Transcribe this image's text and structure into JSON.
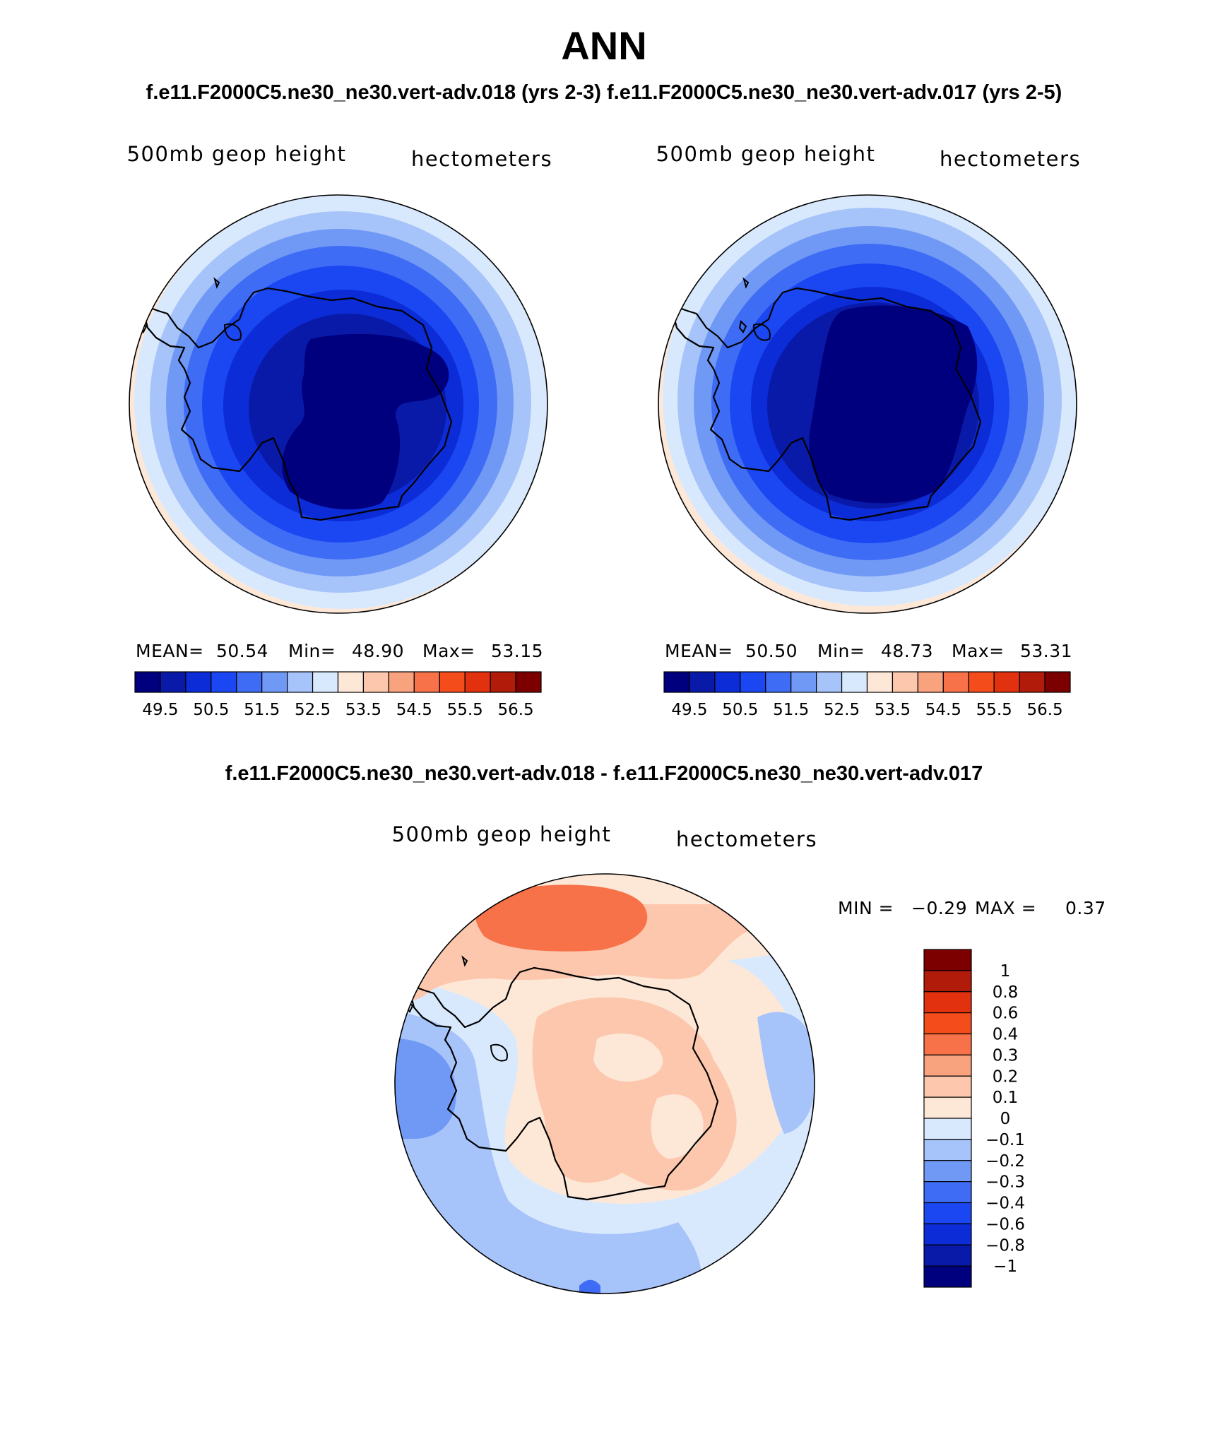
{
  "title": "ANN",
  "subtitle": "f.e11.F2000C5.ne30_ne30.vert-adv.018 (yrs 2-3)  f.e11.F2000C5.ne30_ne30.vert-adv.017 (yrs 2-5)",
  "diff_title": "f.e11.F2000C5.ne30_ne30.vert-adv.018 - f.e11.F2000C5.ne30_ne30.vert-adv.017",
  "panels": [
    {
      "variable": "500mb  geop  height",
      "units": "hectometers",
      "mean_label": "MEAN=",
      "mean": "50.54",
      "min_label": "Min=",
      "min": "48.90",
      "max_label": "Max=",
      "max": "53.15"
    },
    {
      "variable": "500mb  geop  height",
      "units": "hectometers",
      "mean_label": "MEAN=",
      "mean": "50.50",
      "min_label": "Min=",
      "min": "48.73",
      "max_label": "Max=",
      "max": "53.31"
    }
  ],
  "diff_panel": {
    "variable": "500mb  geop  height",
    "units": "hectometers",
    "min_label": "MIN =",
    "min": "−0.29",
    "max_label": "MAX =",
    "max": "0.37"
  },
  "chart_data": [
    {
      "type": "heatmap",
      "title": "500mb geop height (case 018, yrs 2-3)",
      "units": "hectometers",
      "projection": "south polar stereographic",
      "colorbar_orientation": "horizontal",
      "colorbar_levels": [
        "49.5",
        "50.5",
        "51.5",
        "52.5",
        "53.5",
        "54.5",
        "55.5",
        "56.5"
      ],
      "colorbar_colors": [
        "#00007f",
        "#0a1aa8",
        "#0b2cd6",
        "#1a47f2",
        "#3f6cf5",
        "#7099f6",
        "#a6c3fa",
        "#d9e9fd",
        "#fde8d8",
        "#fcc7ad",
        "#f9a27e",
        "#f77249",
        "#f44c1b",
        "#e1310e",
        "#b11b0a",
        "#7d0000"
      ],
      "stats": {
        "mean": 50.54,
        "min": 48.9,
        "max": 53.15
      },
      "rings": [
        {
          "value_band": "<49.5",
          "color": "#00007f"
        },
        {
          "value_band": "49.5-50",
          "color": "#0a1aa8"
        },
        {
          "value_band": "50-50.5",
          "color": "#0b2cd6"
        },
        {
          "value_band": "50.5-51",
          "color": "#1a47f2"
        },
        {
          "value_band": "51-51.5",
          "color": "#3f6cf5"
        },
        {
          "value_band": "51.5-52",
          "color": "#7099f6"
        },
        {
          "value_band": "52-52.5",
          "color": "#a6c3fa"
        },
        {
          "value_band": "52.5-53",
          "color": "#d9e9fd"
        },
        {
          "value_band": "53-53.5",
          "color": "#fde8d8"
        }
      ]
    },
    {
      "type": "heatmap",
      "title": "500mb geop height (case 017, yrs 2-5)",
      "units": "hectometers",
      "projection": "south polar stereographic",
      "colorbar_orientation": "horizontal",
      "colorbar_levels": [
        "49.5",
        "50.5",
        "51.5",
        "52.5",
        "53.5",
        "54.5",
        "55.5",
        "56.5"
      ],
      "colorbar_colors": [
        "#00007f",
        "#0a1aa8",
        "#0b2cd6",
        "#1a47f2",
        "#3f6cf5",
        "#7099f6",
        "#a6c3fa",
        "#d9e9fd",
        "#fde8d8",
        "#fcc7ad",
        "#f9a27e",
        "#f77249",
        "#f44c1b",
        "#e1310e",
        "#b11b0a",
        "#7d0000"
      ],
      "stats": {
        "mean": 50.5,
        "min": 48.73,
        "max": 53.31
      }
    },
    {
      "type": "heatmap",
      "title": "500mb geop height difference (018 - 017)",
      "units": "hectometers",
      "projection": "south polar stereographic",
      "colorbar_orientation": "vertical",
      "colorbar_levels": [
        "1",
        "0.8",
        "0.6",
        "0.4",
        "0.3",
        "0.2",
        "0.1",
        "0",
        "−0.1",
        "−0.2",
        "−0.3",
        "−0.4",
        "−0.6",
        "−0.8",
        "−1"
      ],
      "colorbar_colors": [
        "#7d0000",
        "#b11b0a",
        "#e1310e",
        "#f44c1b",
        "#f77249",
        "#f9a27e",
        "#fcc7ad",
        "#fde8d8",
        "#d9e9fd",
        "#a6c3fa",
        "#7099f6",
        "#3f6cf5",
        "#1a47f2",
        "#0b2cd6",
        "#0a1aa8",
        "#00007f"
      ],
      "stats": {
        "min": -0.29,
        "max": 0.37
      }
    }
  ]
}
